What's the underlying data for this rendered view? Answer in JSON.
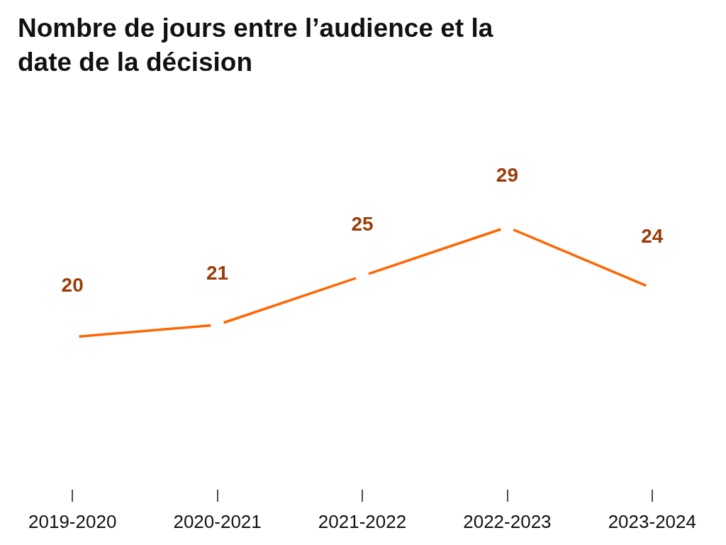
{
  "chart_data": {
    "type": "line",
    "title": "Nombre de jours entre l’audience et la date de la décision",
    "categories": [
      "2019-2020",
      "2020-2021",
      "2021-2022",
      "2022-2023",
      "2023-2024"
    ],
    "series": [
      {
        "color": "#ff6600",
        "values": [
          20,
          21,
          25,
          29,
          24
        ]
      }
    ],
    "tick_labels": "x",
    "grid": false,
    "data_labels": true,
    "marker": "circle",
    "line_style": "solid"
  }
}
